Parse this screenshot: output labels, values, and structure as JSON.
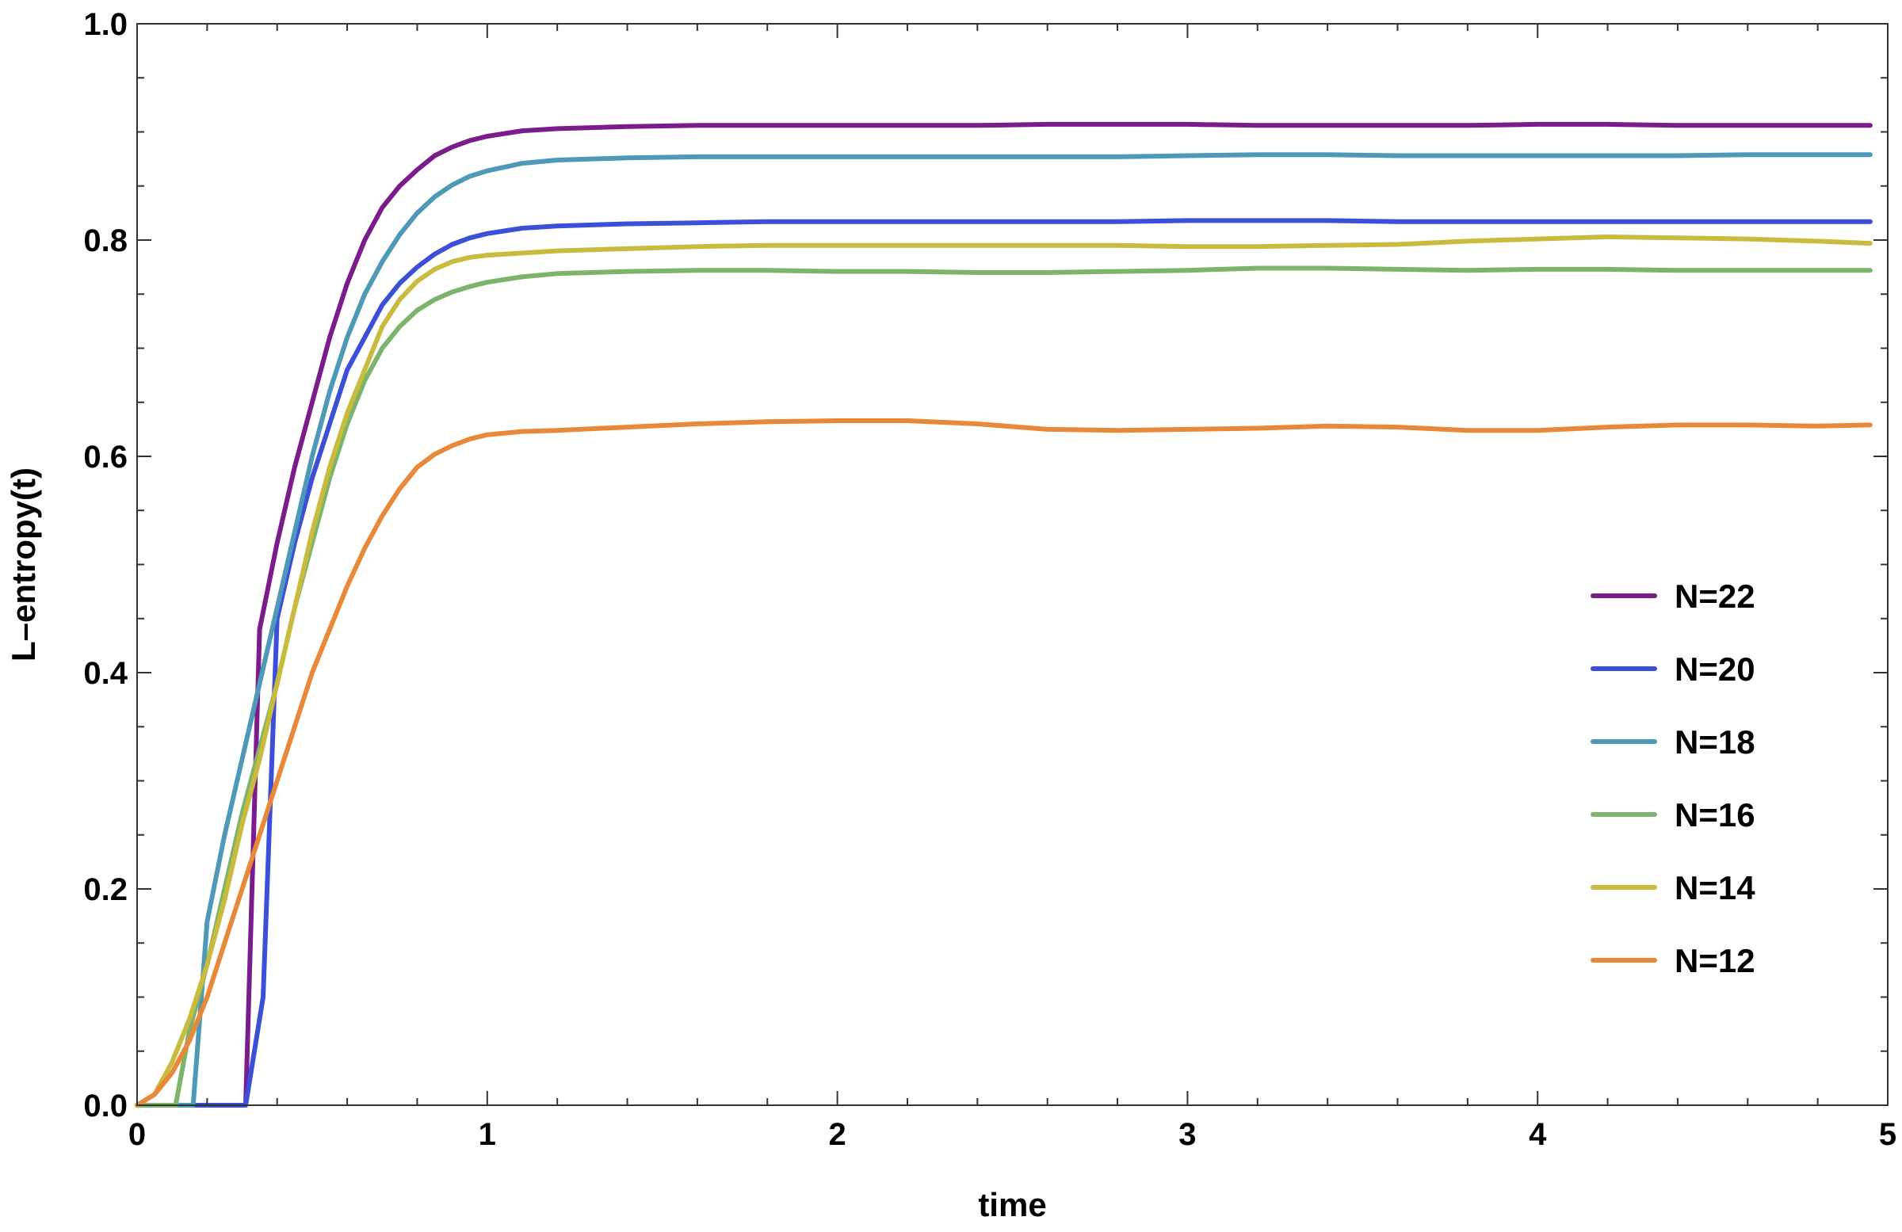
{
  "chart_data": {
    "type": "line",
    "title": "",
    "xlabel": "time",
    "ylabel": "L–entropy(t)",
    "xlim": [
      0,
      5
    ],
    "ylim": [
      0,
      1.0
    ],
    "x_ticks": [
      "0",
      "1",
      "2",
      "3",
      "4",
      "5"
    ],
    "y_ticks": [
      "0.0",
      "0.2",
      "0.4",
      "0.6",
      "0.8",
      "1.0"
    ],
    "grid": false,
    "legend_position": "right",
    "series": [
      {
        "name": "N=22",
        "color": "#7B1C8C",
        "points": [
          [
            0,
            0
          ],
          [
            0.1,
            0
          ],
          [
            0.2,
            0
          ],
          [
            0.3,
            0
          ],
          [
            0.31,
            0
          ],
          [
            0.35,
            0.44
          ],
          [
            0.4,
            0.52
          ],
          [
            0.45,
            0.59
          ],
          [
            0.5,
            0.65
          ],
          [
            0.55,
            0.71
          ],
          [
            0.6,
            0.76
          ],
          [
            0.65,
            0.8
          ],
          [
            0.7,
            0.83
          ],
          [
            0.75,
            0.85
          ],
          [
            0.8,
            0.865
          ],
          [
            0.85,
            0.878
          ],
          [
            0.9,
            0.886
          ],
          [
            0.95,
            0.892
          ],
          [
            1.0,
            0.896
          ],
          [
            1.1,
            0.901
          ],
          [
            1.2,
            0.903
          ],
          [
            1.4,
            0.905
          ],
          [
            1.6,
            0.906
          ],
          [
            1.8,
            0.906
          ],
          [
            2.0,
            0.906
          ],
          [
            2.2,
            0.906
          ],
          [
            2.4,
            0.906
          ],
          [
            2.6,
            0.907
          ],
          [
            2.8,
            0.907
          ],
          [
            3.0,
            0.907
          ],
          [
            3.2,
            0.906
          ],
          [
            3.4,
            0.906
          ],
          [
            3.6,
            0.906
          ],
          [
            3.8,
            0.906
          ],
          [
            4.0,
            0.907
          ],
          [
            4.2,
            0.907
          ],
          [
            4.4,
            0.906
          ],
          [
            4.6,
            0.906
          ],
          [
            4.8,
            0.906
          ],
          [
            4.95,
            0.906
          ]
        ]
      },
      {
        "name": "N=20",
        "color": "#3C4FD8",
        "points": [
          [
            0,
            0
          ],
          [
            0.1,
            0
          ],
          [
            0.2,
            0
          ],
          [
            0.3,
            0
          ],
          [
            0.31,
            0
          ],
          [
            0.36,
            0.1
          ],
          [
            0.4,
            0.45
          ],
          [
            0.45,
            0.52
          ],
          [
            0.5,
            0.58
          ],
          [
            0.55,
            0.63
          ],
          [
            0.6,
            0.68
          ],
          [
            0.65,
            0.71
          ],
          [
            0.7,
            0.74
          ],
          [
            0.75,
            0.76
          ],
          [
            0.8,
            0.775
          ],
          [
            0.85,
            0.787
          ],
          [
            0.9,
            0.796
          ],
          [
            0.95,
            0.802
          ],
          [
            1.0,
            0.806
          ],
          [
            1.1,
            0.811
          ],
          [
            1.2,
            0.813
          ],
          [
            1.4,
            0.815
          ],
          [
            1.6,
            0.816
          ],
          [
            1.8,
            0.817
          ],
          [
            2.0,
            0.817
          ],
          [
            2.2,
            0.817
          ],
          [
            2.4,
            0.817
          ],
          [
            2.6,
            0.817
          ],
          [
            2.8,
            0.817
          ],
          [
            3.0,
            0.818
          ],
          [
            3.2,
            0.818
          ],
          [
            3.4,
            0.818
          ],
          [
            3.6,
            0.817
          ],
          [
            3.8,
            0.817
          ],
          [
            4.0,
            0.817
          ],
          [
            4.2,
            0.817
          ],
          [
            4.4,
            0.817
          ],
          [
            4.6,
            0.817
          ],
          [
            4.8,
            0.817
          ],
          [
            4.95,
            0.817
          ]
        ]
      },
      {
        "name": "N=18",
        "color": "#4E98B8",
        "points": [
          [
            0,
            0
          ],
          [
            0.05,
            0
          ],
          [
            0.1,
            0
          ],
          [
            0.15,
            0
          ],
          [
            0.16,
            0
          ],
          [
            0.2,
            0.17
          ],
          [
            0.25,
            0.25
          ],
          [
            0.3,
            0.32
          ],
          [
            0.35,
            0.39
          ],
          [
            0.4,
            0.46
          ],
          [
            0.45,
            0.53
          ],
          [
            0.5,
            0.6
          ],
          [
            0.55,
            0.66
          ],
          [
            0.6,
            0.71
          ],
          [
            0.65,
            0.75
          ],
          [
            0.7,
            0.78
          ],
          [
            0.75,
            0.805
          ],
          [
            0.8,
            0.825
          ],
          [
            0.85,
            0.84
          ],
          [
            0.9,
            0.851
          ],
          [
            0.95,
            0.859
          ],
          [
            1.0,
            0.864
          ],
          [
            1.1,
            0.871
          ],
          [
            1.2,
            0.874
          ],
          [
            1.4,
            0.876
          ],
          [
            1.6,
            0.877
          ],
          [
            1.8,
            0.877
          ],
          [
            2.0,
            0.877
          ],
          [
            2.2,
            0.877
          ],
          [
            2.4,
            0.877
          ],
          [
            2.6,
            0.877
          ],
          [
            2.8,
            0.877
          ],
          [
            3.0,
            0.878
          ],
          [
            3.2,
            0.879
          ],
          [
            3.4,
            0.879
          ],
          [
            3.6,
            0.878
          ],
          [
            3.8,
            0.878
          ],
          [
            4.0,
            0.878
          ],
          [
            4.2,
            0.878
          ],
          [
            4.4,
            0.878
          ],
          [
            4.6,
            0.879
          ],
          [
            4.8,
            0.879
          ],
          [
            4.95,
            0.879
          ]
        ]
      },
      {
        "name": "N=16",
        "color": "#7DB46C",
        "points": [
          [
            0,
            0
          ],
          [
            0.05,
            0
          ],
          [
            0.1,
            0
          ],
          [
            0.11,
            0
          ],
          [
            0.15,
            0.07
          ],
          [
            0.2,
            0.13
          ],
          [
            0.25,
            0.2
          ],
          [
            0.3,
            0.27
          ],
          [
            0.35,
            0.33
          ],
          [
            0.4,
            0.39
          ],
          [
            0.45,
            0.46
          ],
          [
            0.5,
            0.52
          ],
          [
            0.55,
            0.58
          ],
          [
            0.6,
            0.63
          ],
          [
            0.65,
            0.67
          ],
          [
            0.7,
            0.7
          ],
          [
            0.75,
            0.72
          ],
          [
            0.8,
            0.735
          ],
          [
            0.85,
            0.745
          ],
          [
            0.9,
            0.752
          ],
          [
            0.95,
            0.757
          ],
          [
            1.0,
            0.761
          ],
          [
            1.1,
            0.766
          ],
          [
            1.2,
            0.769
          ],
          [
            1.4,
            0.771
          ],
          [
            1.6,
            0.772
          ],
          [
            1.8,
            0.772
          ],
          [
            2.0,
            0.771
          ],
          [
            2.2,
            0.771
          ],
          [
            2.4,
            0.77
          ],
          [
            2.6,
            0.77
          ],
          [
            2.8,
            0.771
          ],
          [
            3.0,
            0.772
          ],
          [
            3.2,
            0.774
          ],
          [
            3.4,
            0.774
          ],
          [
            3.6,
            0.773
          ],
          [
            3.8,
            0.772
          ],
          [
            4.0,
            0.773
          ],
          [
            4.2,
            0.773
          ],
          [
            4.4,
            0.772
          ],
          [
            4.6,
            0.772
          ],
          [
            4.8,
            0.772
          ],
          [
            4.95,
            0.772
          ]
        ]
      },
      {
        "name": "N=14",
        "color": "#C9BB3D",
        "points": [
          [
            0,
            0
          ],
          [
            0.05,
            0.01
          ],
          [
            0.1,
            0.04
          ],
          [
            0.15,
            0.08
          ],
          [
            0.2,
            0.13
          ],
          [
            0.25,
            0.19
          ],
          [
            0.3,
            0.26
          ],
          [
            0.35,
            0.32
          ],
          [
            0.4,
            0.39
          ],
          [
            0.45,
            0.46
          ],
          [
            0.5,
            0.53
          ],
          [
            0.55,
            0.59
          ],
          [
            0.6,
            0.64
          ],
          [
            0.65,
            0.68
          ],
          [
            0.7,
            0.72
          ],
          [
            0.75,
            0.745
          ],
          [
            0.8,
            0.762
          ],
          [
            0.85,
            0.773
          ],
          [
            0.9,
            0.78
          ],
          [
            0.95,
            0.784
          ],
          [
            1.0,
            0.786
          ],
          [
            1.1,
            0.788
          ],
          [
            1.2,
            0.79
          ],
          [
            1.4,
            0.792
          ],
          [
            1.6,
            0.794
          ],
          [
            1.8,
            0.795
          ],
          [
            2.0,
            0.795
          ],
          [
            2.2,
            0.795
          ],
          [
            2.4,
            0.795
          ],
          [
            2.6,
            0.795
          ],
          [
            2.8,
            0.795
          ],
          [
            3.0,
            0.794
          ],
          [
            3.2,
            0.794
          ],
          [
            3.4,
            0.795
          ],
          [
            3.6,
            0.796
          ],
          [
            3.8,
            0.799
          ],
          [
            4.0,
            0.801
          ],
          [
            4.2,
            0.803
          ],
          [
            4.4,
            0.802
          ],
          [
            4.6,
            0.801
          ],
          [
            4.8,
            0.799
          ],
          [
            4.95,
            0.797
          ]
        ]
      },
      {
        "name": "N=12",
        "color": "#E8893A",
        "points": [
          [
            0,
            0
          ],
          [
            0.05,
            0.01
          ],
          [
            0.1,
            0.03
          ],
          [
            0.15,
            0.06
          ],
          [
            0.2,
            0.1
          ],
          [
            0.25,
            0.15
          ],
          [
            0.3,
            0.2
          ],
          [
            0.35,
            0.25
          ],
          [
            0.4,
            0.3
          ],
          [
            0.45,
            0.35
          ],
          [
            0.5,
            0.4
          ],
          [
            0.55,
            0.44
          ],
          [
            0.6,
            0.48
          ],
          [
            0.65,
            0.515
          ],
          [
            0.7,
            0.545
          ],
          [
            0.75,
            0.57
          ],
          [
            0.8,
            0.59
          ],
          [
            0.85,
            0.602
          ],
          [
            0.9,
            0.61
          ],
          [
            0.95,
            0.616
          ],
          [
            1.0,
            0.62
          ],
          [
            1.1,
            0.623
          ],
          [
            1.2,
            0.624
          ],
          [
            1.4,
            0.627
          ],
          [
            1.6,
            0.63
          ],
          [
            1.8,
            0.632
          ],
          [
            2.0,
            0.633
          ],
          [
            2.2,
            0.633
          ],
          [
            2.4,
            0.63
          ],
          [
            2.6,
            0.625
          ],
          [
            2.8,
            0.624
          ],
          [
            3.0,
            0.625
          ],
          [
            3.2,
            0.626
          ],
          [
            3.4,
            0.628
          ],
          [
            3.6,
            0.627
          ],
          [
            3.8,
            0.624
          ],
          [
            4.0,
            0.624
          ],
          [
            4.2,
            0.627
          ],
          [
            4.4,
            0.629
          ],
          [
            4.6,
            0.629
          ],
          [
            4.8,
            0.628
          ],
          [
            4.95,
            0.629
          ]
        ]
      }
    ]
  }
}
